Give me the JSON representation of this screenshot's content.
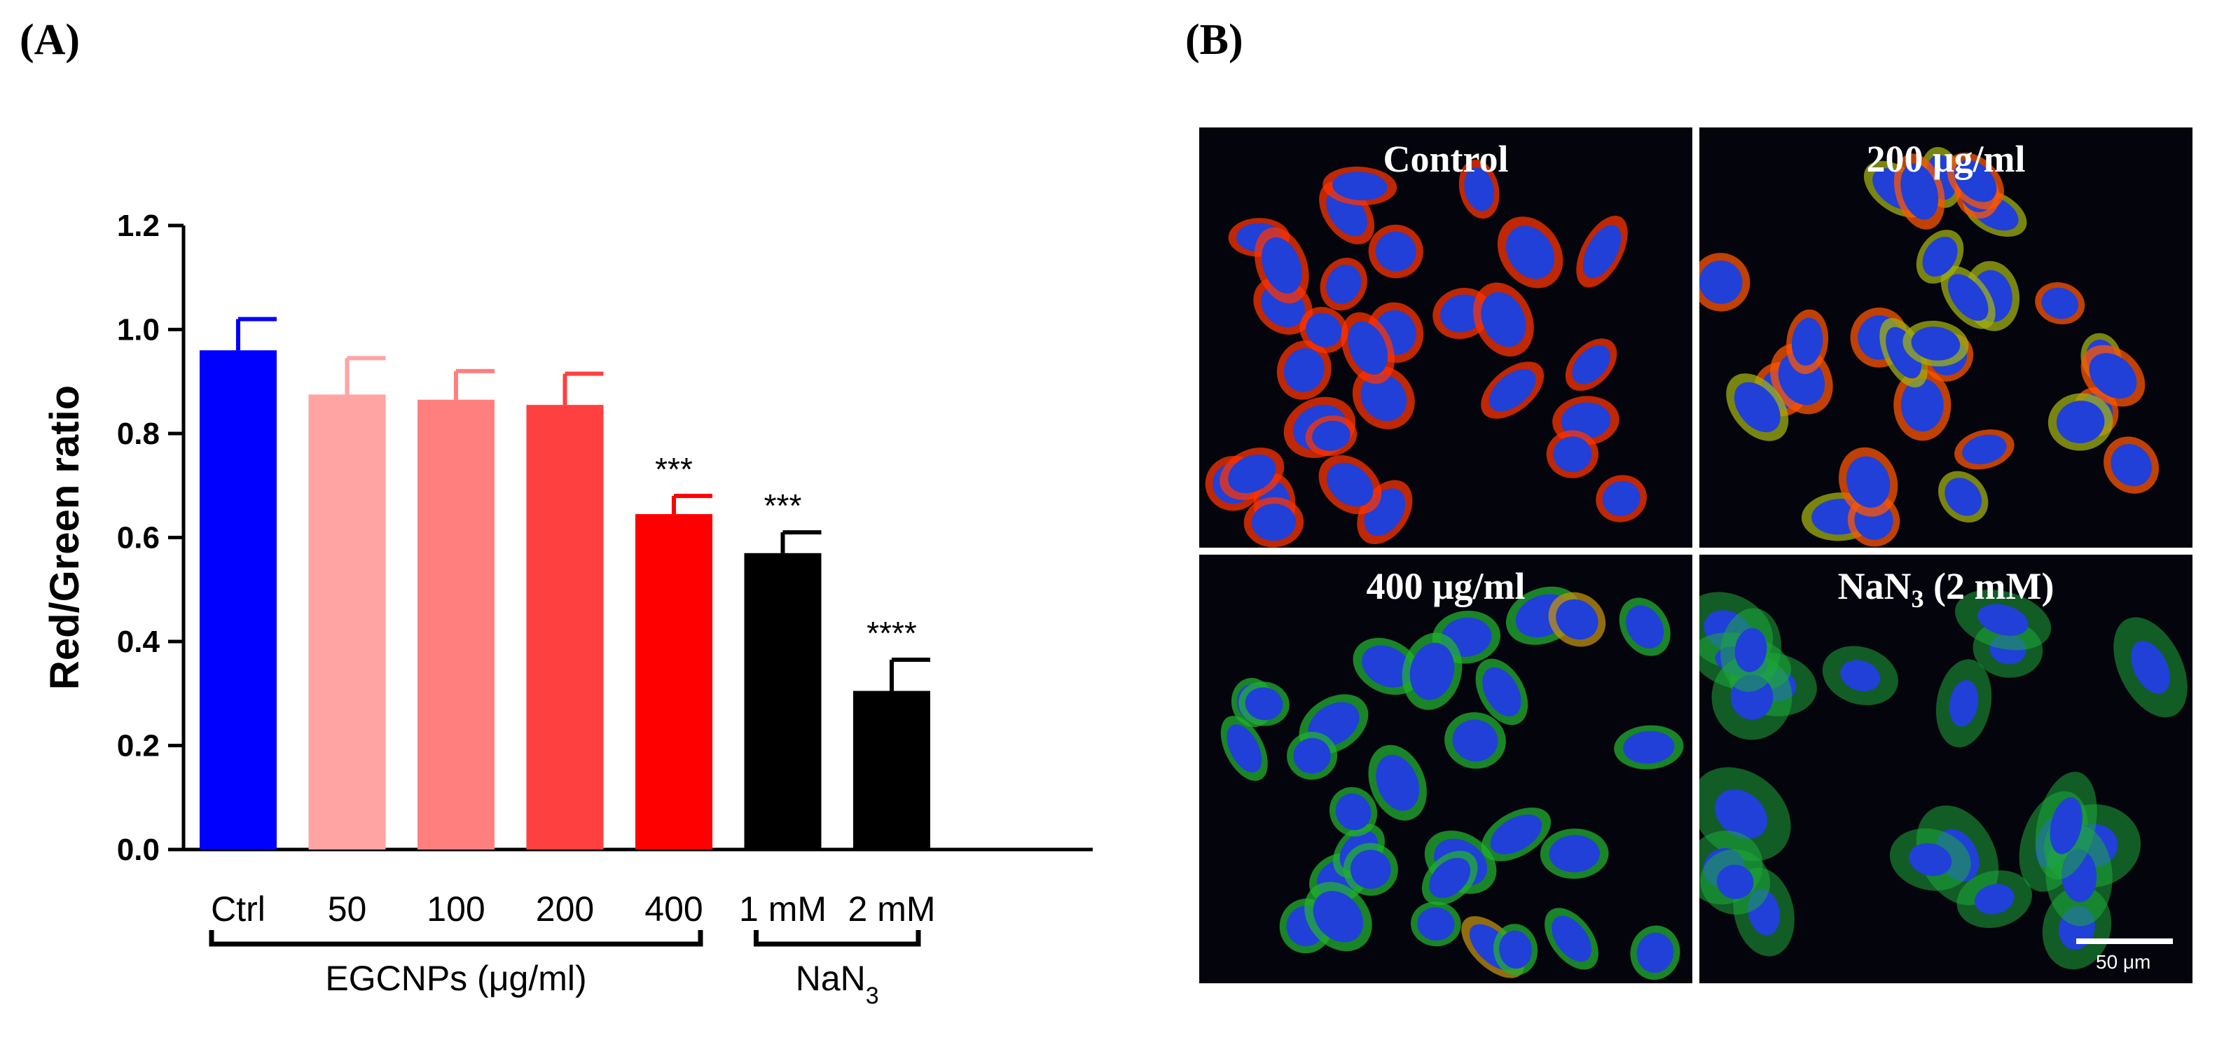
{
  "panels": {
    "a_label": "(A)",
    "b_label": "(B)"
  },
  "chart_data": {
    "type": "bar",
    "categories": [
      "Ctrl",
      "50",
      "100",
      "200",
      "400",
      "1 mM",
      "2 mM"
    ],
    "values": [
      0.96,
      0.875,
      0.865,
      0.855,
      0.645,
      0.57,
      0.305
    ],
    "errors": [
      0.06,
      0.07,
      0.055,
      0.06,
      0.035,
      0.04,
      0.06
    ],
    "colors": [
      "#0000ff",
      "#ffa3a3",
      "#ff7f7f",
      "#ff4040",
      "#ff0000",
      "#000000",
      "#000000"
    ],
    "significance": [
      "",
      "",
      "",
      "",
      "***",
      "***",
      "****"
    ],
    "ylabel": "Red/Green ratio",
    "xlabel": "",
    "ylim": [
      0,
      1.2
    ],
    "yticks": [
      "0.0",
      "0.2",
      "0.4",
      "0.6",
      "0.8",
      "1.0",
      "1.2"
    ],
    "groups": [
      {
        "label": "EGCNPs (μg/ml)",
        "from": 0,
        "to": 4
      },
      {
        "label": "NaN",
        "subscript": "3",
        "from": 5,
        "to": 6
      }
    ]
  },
  "micrographs": [
    {
      "title": "Control",
      "kind": "red"
    },
    {
      "title": "200 μg/ml",
      "kind": "redgreen"
    },
    {
      "title": "400 μg/ml",
      "kind": "green"
    },
    {
      "title_main": "NaN",
      "title_sub": "3",
      "title_rest": " (2 mM)",
      "kind": "greenbig"
    }
  ],
  "scale_bar": {
    "label": "50 μm"
  }
}
